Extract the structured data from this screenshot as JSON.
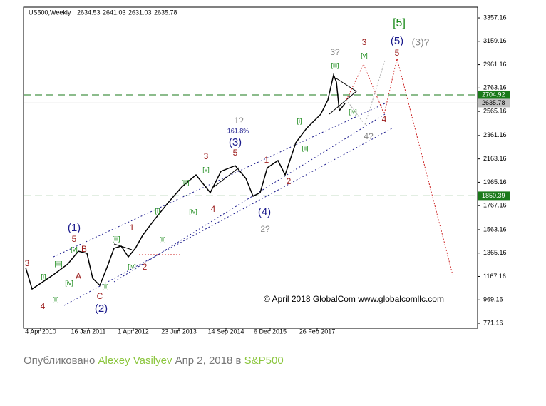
{
  "header": {
    "symbol": "US500,Weekly",
    "ohlc": [
      2634.53,
      2641.03,
      2631.03,
      2635.78
    ]
  },
  "chart_data": {
    "type": "line",
    "x": [
      3,
      12,
      27,
      42,
      62,
      77,
      89,
      97,
      107,
      117,
      127,
      137,
      147,
      157,
      167,
      182,
      202,
      222,
      242,
      262,
      277,
      297,
      312,
      322,
      332,
      342,
      357,
      367,
      382,
      397,
      417,
      427,
      435,
      439,
      443,
      451
    ],
    "series": [
      {
        "name": "US500",
        "color": "#000000",
        "values": [
          1242,
          1061,
          1121,
          1182,
          1272,
          1381,
          1363,
          1152,
          1091,
          1242,
          1406,
          1424,
          1333,
          1406,
          1514,
          1635,
          1786,
          1925,
          2028,
          1877,
          2058,
          2106,
          1998,
          1847,
          1877,
          2088,
          2149,
          2028,
          2300,
          2421,
          2541,
          2662,
          2874,
          2813,
          2571,
          2632
        ]
      }
    ],
    "xlim": [
      0,
      637
    ],
    "xticks": [
      {
        "value": 24,
        "label": "4 Apr 2010"
      },
      {
        "value": 91,
        "label": "16 Jan 2011"
      },
      {
        "value": 154,
        "label": "1 Apr 2012"
      },
      {
        "value": 218,
        "label": "23 Jun 2013"
      },
      {
        "value": 284,
        "label": "14 Sep 2014"
      },
      {
        "value": 346,
        "label": "6 Dec 2015"
      },
      {
        "value": 412,
        "label": "26 Feb 2017"
      }
    ],
    "ylim": [
      729,
      3448
    ],
    "yticks": [
      3357.16,
      3159.16,
      2961.16,
      2763.16,
      2565.16,
      2361.16,
      2163.16,
      1965.16,
      1767.16,
      1563.16,
      1365.16,
      1167.16,
      969.16,
      771.16
    ],
    "levels": [
      2704.92,
      1850.39
    ],
    "level_color": "#1a7a1a",
    "current": 2635.78,
    "annotations": [
      {
        "text": "[5]",
        "color": "#1a8a1a"
      },
      {
        "text": "(5)",
        "color": "#1a1a8c"
      },
      {
        "text": "(3)?",
        "color": "#888888"
      },
      {
        "text": "3",
        "color": "#9b1b1b"
      },
      {
        "text": "3?",
        "color": "#888888"
      },
      {
        "text": "5",
        "color": "#9b1b1b"
      },
      {
        "text": "[v]",
        "color": "#1a8a1a"
      },
      {
        "text": "[iii]",
        "color": "#1a8a1a"
      },
      {
        "text": "[iv]",
        "color": "#1a8a1a"
      },
      {
        "text": "4",
        "color": "#9b1b1b"
      },
      {
        "text": "4?",
        "color": "#888888"
      },
      {
        "text": "1?",
        "color": "#888888"
      },
      {
        "text": "161.8%",
        "color": "#1a1a8c"
      },
      {
        "text": "(3)",
        "color": "#1a1a8c"
      },
      {
        "text": "3",
        "color": "#9b1b1b"
      },
      {
        "text": "5",
        "color": "#9b1b1b"
      },
      {
        "text": "1",
        "color": "#9b1b1b"
      },
      {
        "text": "[i]",
        "color": "#1a8a1a"
      },
      {
        "text": "[ii]",
        "color": "#1a8a1a"
      },
      {
        "text": "[v]",
        "color": "#1a8a1a"
      },
      {
        "text": "[iii]",
        "color": "#1a8a1a"
      },
      {
        "text": "[i]",
        "color": "#1a8a1a"
      },
      {
        "text": "[iv]",
        "color": "#1a8a1a"
      },
      {
        "text": "4",
        "color": "#9b1b1b"
      },
      {
        "text": "2",
        "color": "#9b1b1b"
      },
      {
        "text": "(4)",
        "color": "#1a1a8c"
      },
      {
        "text": "2?",
        "color": "#888888"
      },
      {
        "text": "(1)",
        "color": "#1a1a8c"
      },
      {
        "text": "5",
        "color": "#9b1b1b"
      },
      {
        "text": "[v]",
        "color": "#1a8a1a"
      },
      {
        "text": "B",
        "color": "#9b1b1b"
      },
      {
        "text": "[iii]",
        "color": "#1a8a1a"
      },
      {
        "text": "1",
        "color": "#9b1b1b"
      },
      {
        "text": "[ii]",
        "color": "#1a8a1a"
      },
      {
        "text": "[iii]",
        "color": "#1a8a1a"
      },
      {
        "text": "A",
        "color": "#9b1b1b"
      },
      {
        "text": "[i]",
        "color": "#1a8a1a"
      },
      {
        "text": "[iv]",
        "color": "#1a8a1a"
      },
      {
        "text": "2",
        "color": "#9b1b1b"
      },
      {
        "text": "[iv]",
        "color": "#1a8a1a"
      },
      {
        "text": "C",
        "color": "#9b1b1b"
      },
      {
        "text": "[ii]",
        "color": "#1a8a1a"
      },
      {
        "text": "[ii]",
        "color": "#1a8a1a"
      },
      {
        "text": "3",
        "color": "#9b1b1b"
      },
      {
        "text": "4",
        "color": "#9b1b1b"
      },
      {
        "text": "(2)",
        "color": "#1a1a8c"
      }
    ],
    "copyright": "© April 2018 GlobalCom www.globalcomllc.com"
  },
  "caption": {
    "prefix": "Опубликовано",
    "author": "Alexey Vasilyev",
    "date": "Апр 2, 2018",
    "in": "в",
    "topic": "S&P500"
  }
}
